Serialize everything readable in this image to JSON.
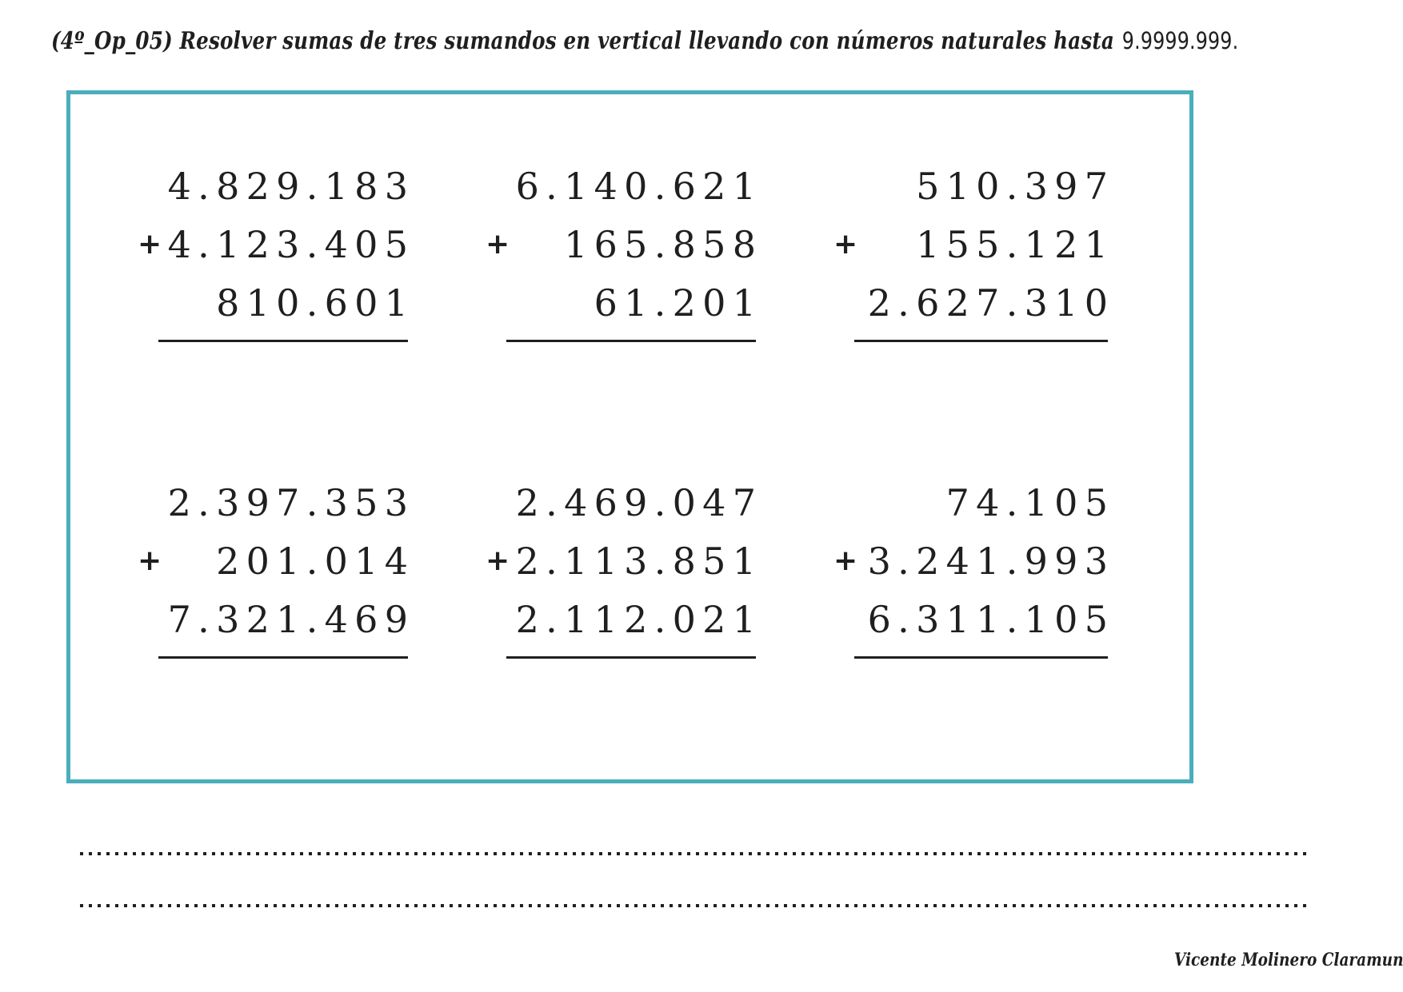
{
  "header": {
    "title_script": "(4º_Op_05) Resolver sumas de tres sumandos en vertical llevando con números naturales hasta",
    "title_limit": "9.9999.999."
  },
  "plus_sign": "+",
  "problems": [
    {
      "addends": [
        "4.829.183",
        "4.123.405",
        "810.601"
      ]
    },
    {
      "addends": [
        "6.140.621",
        "165.858",
        "61.201"
      ]
    },
    {
      "addends": [
        "510.397",
        "155.121",
        "2.627.310"
      ]
    },
    {
      "addends": [
        "2.397.353",
        "201.014",
        "7.321.469"
      ]
    },
    {
      "addends": [
        "2.469.047",
        "2.113.851",
        "2.112.021"
      ]
    },
    {
      "addends": [
        "74.105",
        "3.241.993",
        "6.311.105"
      ]
    }
  ],
  "footer": {
    "author": "Vicente Molinero Claramunt"
  },
  "colors": {
    "box_border": "#4aaebc",
    "ink": "#1f1f1f"
  }
}
